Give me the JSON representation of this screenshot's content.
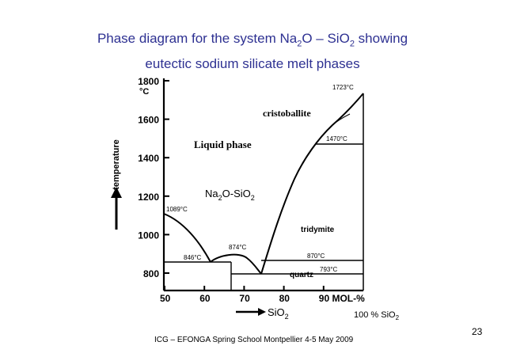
{
  "slide": {
    "title_line1_pre": "Phase diagram for the system Na",
    "title_line1_sub1": "2",
    "title_line1_mid": "O – SiO",
    "title_line1_sub2": "2",
    "title_line1_post": " showing",
    "title_line2": "eutectic sodium silicate melt phases",
    "footer": "ICG – EFONGA Spring School Montpellier 4-5 May 2009",
    "page_number": "23",
    "sio2_note_pre": "100 % SiO",
    "sio2_note_sub": "2"
  },
  "diagram": {
    "y_axis": {
      "label": "temperature",
      "ticks": [
        {
          "value": 800,
          "label": "800"
        },
        {
          "value": 1000,
          "label": "1000"
        },
        {
          "value": 1200,
          "label": "1200"
        },
        {
          "value": 1400,
          "label": "1400"
        },
        {
          "value": 1600,
          "label": "1600"
        },
        {
          "value": 1800,
          "label": "1800"
        }
      ],
      "unit": "°C",
      "range": [
        700,
        1800
      ]
    },
    "x_axis": {
      "label_pre": "SiO",
      "label_sub": "2",
      "ticks": [
        {
          "value": 50,
          "label": "50"
        },
        {
          "value": 60,
          "label": "60"
        },
        {
          "value": 70,
          "label": "70"
        },
        {
          "value": 80,
          "label": "80"
        },
        {
          "value": 90,
          "label": "90 MOL-%"
        }
      ],
      "range": [
        50,
        100
      ]
    },
    "regions": {
      "liquid": "Liquid phase",
      "cristobalite": "cristoballite",
      "tridymite": "tridymite",
      "quartz": "quartz",
      "compound_pre": "Na",
      "compound_sub": "2",
      "compound_post": "O-SiO",
      "compound_sub2": "2"
    },
    "temperature_labels": [
      {
        "id": "t1723",
        "text": "1723°C"
      },
      {
        "id": "t1470",
        "text": "1470°C"
      },
      {
        "id": "t1089",
        "text": "1089°C"
      },
      {
        "id": "t874",
        "text": "874°C"
      },
      {
        "id": "t846",
        "text": "846°C"
      },
      {
        "id": "t870",
        "text": "870°C"
      },
      {
        "id": "t793",
        "text": "793°C"
      }
    ],
    "colors": {
      "title": "#2e3192",
      "lines": "#000000"
    }
  }
}
